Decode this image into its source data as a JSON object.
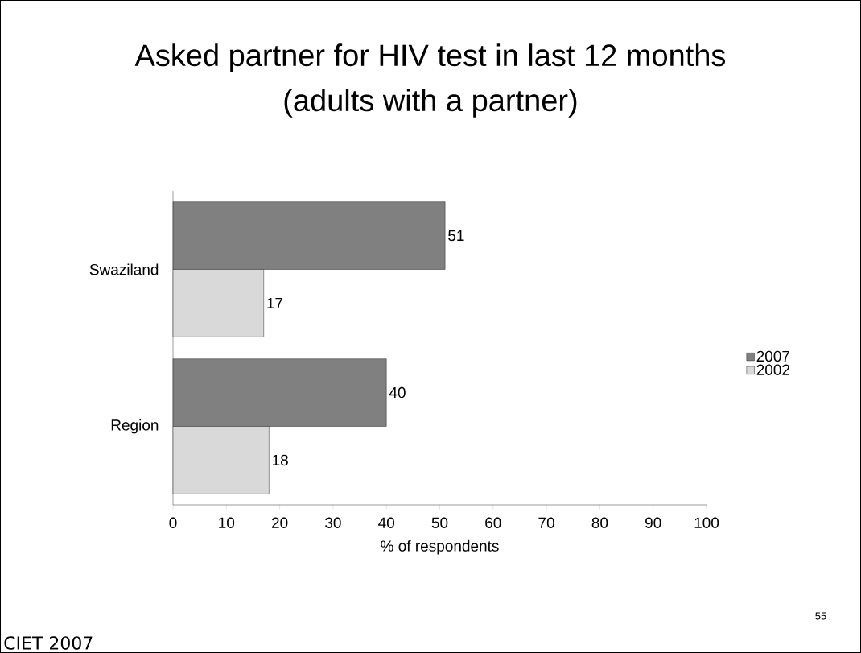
{
  "chart_data": {
    "type": "bar",
    "orientation": "horizontal",
    "title": "Asked partner for HIV test in last 12 months\n(adults with a partner)",
    "xlabel": "% of respondents",
    "categories": [
      "Swaziland",
      "Region"
    ],
    "series": [
      {
        "name": "2007",
        "color": "#808080",
        "values": [
          51,
          40
        ]
      },
      {
        "name": "2002",
        "color": "#d9d9d9",
        "values": [
          17,
          18
        ]
      }
    ],
    "xlim": [
      0,
      100
    ],
    "xticks": [
      0,
      10,
      20,
      30,
      40,
      50,
      60,
      70,
      80,
      90,
      100
    ],
    "grid": false,
    "legend": "right",
    "data_labels": true,
    "annotations": [
      "CIET 2007",
      "55"
    ]
  }
}
